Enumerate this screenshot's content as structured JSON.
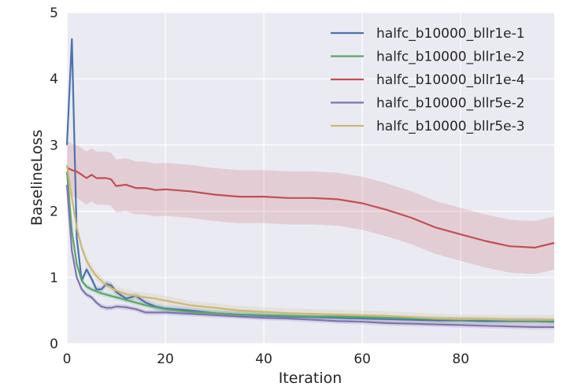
{
  "chart_data": {
    "type": "line",
    "xlabel": "Iteration",
    "ylabel": "BaselineLoss",
    "xlim": [
      0,
      99
    ],
    "ylim": [
      0,
      5
    ],
    "xticks": [
      0,
      20,
      40,
      60,
      80
    ],
    "yticks": [
      0,
      1,
      2,
      3,
      4,
      5
    ],
    "grid": true,
    "legend_position": "top-right",
    "x": [
      0,
      1,
      2,
      3,
      4,
      5,
      6,
      7,
      8,
      9,
      10,
      12,
      14,
      16,
      18,
      20,
      25,
      30,
      35,
      40,
      45,
      50,
      55,
      60,
      65,
      70,
      75,
      80,
      85,
      90,
      95,
      99
    ],
    "series": [
      {
        "name": "halfc_b10000_bllr1e-1",
        "color": "#4c72b0",
        "values": [
          3.0,
          4.6,
          1.6,
          0.95,
          1.12,
          0.98,
          0.82,
          0.82,
          0.9,
          0.88,
          0.78,
          0.68,
          0.72,
          0.62,
          0.56,
          0.53,
          0.5,
          0.46,
          0.44,
          0.42,
          0.41,
          0.4,
          0.39,
          0.38,
          0.37,
          0.36,
          0.35,
          0.35,
          0.34,
          0.34,
          0.34,
          0.33
        ],
        "band": 0.05
      },
      {
        "name": "halfc_b10000_bllr1e-2",
        "color": "#55a868",
        "values": [
          2.6,
          1.7,
          1.2,
          0.95,
          0.86,
          0.82,
          0.79,
          0.76,
          0.74,
          0.72,
          0.7,
          0.66,
          0.62,
          0.58,
          0.55,
          0.52,
          0.48,
          0.46,
          0.44,
          0.43,
          0.42,
          0.41,
          0.41,
          0.4,
          0.39,
          0.38,
          0.37,
          0.36,
          0.36,
          0.35,
          0.35,
          0.34
        ],
        "band": 0.04
      },
      {
        "name": "halfc_b10000_bllr1e-4",
        "color": "#c44e52",
        "values": [
          2.66,
          2.62,
          2.6,
          2.55,
          2.5,
          2.55,
          2.5,
          2.5,
          2.5,
          2.48,
          2.38,
          2.4,
          2.35,
          2.35,
          2.32,
          2.33,
          2.3,
          2.25,
          2.22,
          2.22,
          2.2,
          2.2,
          2.18,
          2.12,
          2.02,
          1.9,
          1.75,
          1.65,
          1.55,
          1.47,
          1.45,
          1.52
        ],
        "band": 0.4
      },
      {
        "name": "halfc_b10000_bllr5e-2",
        "color": "#8172b2",
        "values": [
          2.4,
          1.4,
          1.0,
          0.82,
          0.74,
          0.7,
          0.62,
          0.56,
          0.54,
          0.54,
          0.56,
          0.55,
          0.52,
          0.47,
          0.47,
          0.47,
          0.45,
          0.43,
          0.41,
          0.39,
          0.38,
          0.36,
          0.34,
          0.33,
          0.31,
          0.3,
          0.29,
          0.28,
          0.27,
          0.26,
          0.25,
          0.25
        ],
        "band": 0.04
      },
      {
        "name": "halfc_b10000_bllr5e-3",
        "color": "#ccb974",
        "values": [
          2.7,
          2.2,
          1.75,
          1.45,
          1.25,
          1.12,
          1.02,
          0.95,
          0.88,
          0.84,
          0.8,
          0.75,
          0.72,
          0.7,
          0.68,
          0.65,
          0.58,
          0.54,
          0.5,
          0.48,
          0.46,
          0.45,
          0.44,
          0.43,
          0.42,
          0.4,
          0.38,
          0.37,
          0.37,
          0.36,
          0.36,
          0.36
        ],
        "band": 0.07
      }
    ]
  }
}
